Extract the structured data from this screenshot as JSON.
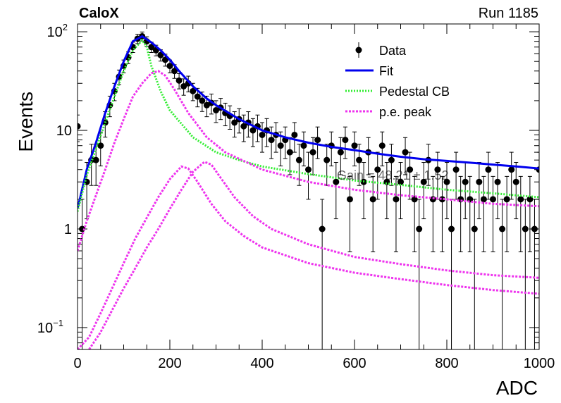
{
  "header": {
    "experiment": "CaloX",
    "run_label": "Run 1185"
  },
  "chart_data": {
    "type": "scatter",
    "title": "",
    "xlabel": "ADC",
    "ylabel": "Events",
    "xlim": [
      0,
      1000
    ],
    "ylim": [
      0.06,
      120
    ],
    "yscale": "log",
    "xticks": [
      "0",
      "200",
      "400",
      "600",
      "800",
      "1000"
    ],
    "yticks": [
      {
        "value": 0.1,
        "label": "10",
        "sup": "−1"
      },
      {
        "value": 1,
        "label": "1",
        "sup": ""
      },
      {
        "value": 10,
        "label": "10",
        "sup": ""
      },
      {
        "value": 100,
        "label": "10",
        "sup": "2"
      }
    ],
    "legend": {
      "position": "top-right",
      "entries": [
        {
          "label": "Data",
          "style": "marker",
          "color": "#000000"
        },
        {
          "label": "Fit",
          "style": "line",
          "color": "#0000ee"
        },
        {
          "label": "Pedestal CB",
          "style": "dotted",
          "color": "#33ee33"
        },
        {
          "label": "p.e. peak",
          "style": "dashed",
          "color": "#ee33ee"
        }
      ]
    },
    "annotations": [
      "Gain = 48.21 ± 1.52"
    ],
    "series": [
      {
        "name": "Data",
        "color": "#000000",
        "x": [
          0,
          10,
          20,
          30,
          40,
          50,
          60,
          70,
          80,
          90,
          100,
          110,
          120,
          130,
          140,
          150,
          160,
          170,
          180,
          190,
          200,
          210,
          220,
          230,
          240,
          250,
          260,
          270,
          280,
          290,
          300,
          310,
          320,
          330,
          340,
          350,
          360,
          370,
          380,
          390,
          400,
          410,
          420,
          430,
          440,
          450,
          460,
          470,
          480,
          490,
          500,
          510,
          520,
          530,
          540,
          550,
          560,
          570,
          580,
          590,
          600,
          610,
          620,
          630,
          640,
          650,
          660,
          670,
          680,
          690,
          700,
          710,
          720,
          730,
          740,
          750,
          760,
          770,
          780,
          790,
          800,
          810,
          820,
          830,
          840,
          850,
          860,
          870,
          880,
          890,
          900,
          910,
          920,
          930,
          940,
          950,
          960,
          970,
          980,
          990,
          1000
        ],
        "y": [
          11,
          1,
          3,
          5,
          5,
          7,
          12,
          18,
          25,
          35,
          45,
          55,
          70,
          85,
          90,
          80,
          70,
          65,
          58,
          52,
          45,
          40,
          32,
          28,
          30,
          25,
          22,
          20,
          18,
          19,
          16,
          17,
          15,
          14,
          12,
          13,
          11,
          12,
          10,
          11,
          9,
          10,
          8,
          9,
          7,
          8,
          6,
          9,
          5,
          7,
          4,
          6,
          8,
          1,
          5,
          7,
          3,
          6,
          8,
          2,
          7,
          5,
          3,
          6,
          2,
          4,
          7,
          3,
          5,
          2,
          3,
          6,
          4,
          2,
          1,
          3,
          5,
          2,
          4,
          2,
          3,
          1,
          4,
          2,
          3,
          2,
          1,
          3,
          2,
          4,
          2,
          3,
          1,
          2,
          4,
          3,
          2,
          1,
          2,
          1,
          4
        ]
      },
      {
        "name": "Fit",
        "color": "#0000ee",
        "x": [
          0,
          20,
          40,
          60,
          80,
          100,
          120,
          140,
          160,
          180,
          200,
          220,
          250,
          280,
          300,
          350,
          400,
          450,
          500,
          550,
          600,
          650,
          700,
          750,
          800,
          850,
          900,
          950,
          1000
        ],
        "y": [
          1.6,
          4,
          7.5,
          15,
          28,
          50,
          80,
          90,
          78,
          65,
          52,
          40,
          28,
          21,
          18,
          13,
          10,
          8.5,
          7.5,
          6.8,
          6.3,
          5.8,
          5.4,
          5.1,
          4.9,
          4.7,
          4.5,
          4.3,
          4.1
        ]
      },
      {
        "name": "Pedestal CB",
        "color": "#33ee33",
        "x": [
          0,
          20,
          40,
          60,
          80,
          100,
          120,
          140,
          150,
          160,
          180,
          200,
          250,
          300,
          350,
          400,
          500,
          600,
          700,
          800,
          900,
          1000
        ],
        "y": [
          1.5,
          3.5,
          6.5,
          12,
          22,
          40,
          65,
          82,
          70,
          45,
          25,
          16,
          8.5,
          6,
          5,
          4.3,
          3.6,
          3.1,
          2.8,
          2.5,
          2.3,
          2.1
        ]
      },
      {
        "name": "p.e. peak",
        "color": "#ee33ee",
        "x": [
          0,
          20,
          40,
          60,
          80,
          100,
          120,
          140,
          160,
          175,
          190,
          210,
          240,
          280,
          320,
          400,
          500,
          600,
          700,
          800,
          900,
          1000
        ],
        "y": [
          0.6,
          1.2,
          2.2,
          4,
          7.5,
          13,
          22,
          30,
          38,
          40,
          36,
          26,
          15,
          8.5,
          6,
          4,
          3,
          2.5,
          2.2,
          2,
          1.8,
          1.7
        ]
      },
      {
        "name": "p.e. peak",
        "color": "#ee33ee",
        "x": [
          0,
          25,
          50,
          75,
          100,
          125,
          150,
          175,
          200,
          225,
          240,
          260,
          290,
          320,
          360,
          400,
          500,
          600,
          700,
          800,
          900,
          1000
        ],
        "y": [
          0.06,
          0.08,
          0.14,
          0.25,
          0.45,
          0.8,
          1.3,
          2.1,
          3.2,
          4.3,
          4.1,
          3,
          1.8,
          1.2,
          0.85,
          0.65,
          0.45,
          0.36,
          0.31,
          0.27,
          0.24,
          0.22
        ]
      },
      {
        "name": "p.e. peak",
        "color": "#ee33ee",
        "x": [
          0,
          25,
          50,
          75,
          100,
          125,
          150,
          175,
          200,
          225,
          250,
          275,
          290,
          310,
          340,
          380,
          420,
          500,
          600,
          700,
          800,
          900,
          1000
        ],
        "y": [
          0.05,
          0.06,
          0.09,
          0.15,
          0.25,
          0.4,
          0.65,
          1,
          1.6,
          2.5,
          3.8,
          4.8,
          4.5,
          3.3,
          2.1,
          1.35,
          1,
          0.7,
          0.52,
          0.44,
          0.38,
          0.34,
          0.32
        ]
      }
    ]
  }
}
